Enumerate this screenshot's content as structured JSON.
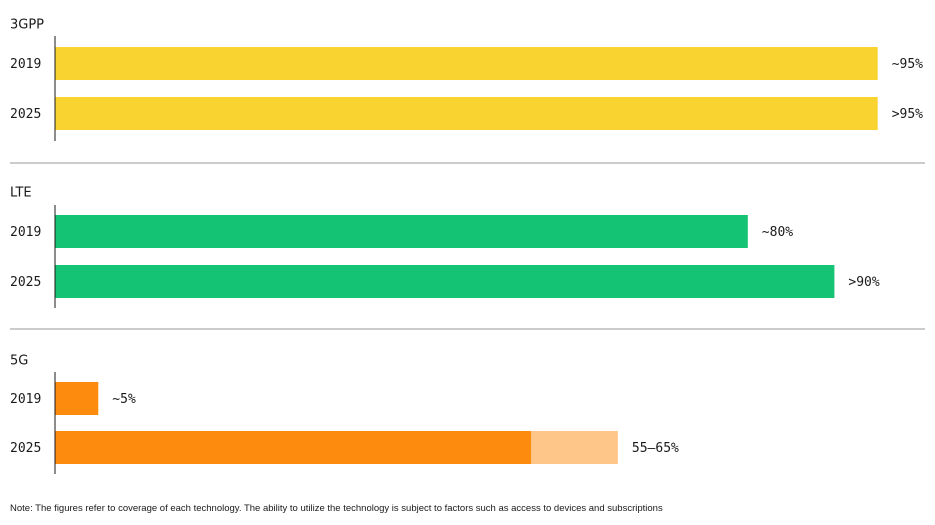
{
  "chart_data": {
    "type": "bar",
    "orientation": "horizontal",
    "unit": "% population coverage",
    "xlim": [
      0,
      100
    ],
    "grid": false,
    "groups": [
      {
        "title": "3GPP",
        "color": "#f9d32f",
        "bars": [
          {
            "category": "2019",
            "value": 95,
            "label": "~95%"
          },
          {
            "category": "2025",
            "value": 95,
            "label": ">95%"
          }
        ]
      },
      {
        "title": "LTE",
        "color": "#14c373",
        "bars": [
          {
            "category": "2019",
            "value": 80,
            "label": "~80%"
          },
          {
            "category": "2025",
            "value": 90,
            "label": ">90%"
          }
        ]
      },
      {
        "title": "5G",
        "color": "#fd8b0e",
        "range_color": "#ffc68a",
        "bars": [
          {
            "category": "2019",
            "value": 5,
            "label": "~5%"
          },
          {
            "category": "2025",
            "value": 55,
            "range_max": 65,
            "label": "55–65%"
          }
        ]
      }
    ]
  },
  "note": "Note: The figures refer to coverage of each technology. The ability to utilize the technology is subject to factors such as access to devices and subscriptions"
}
